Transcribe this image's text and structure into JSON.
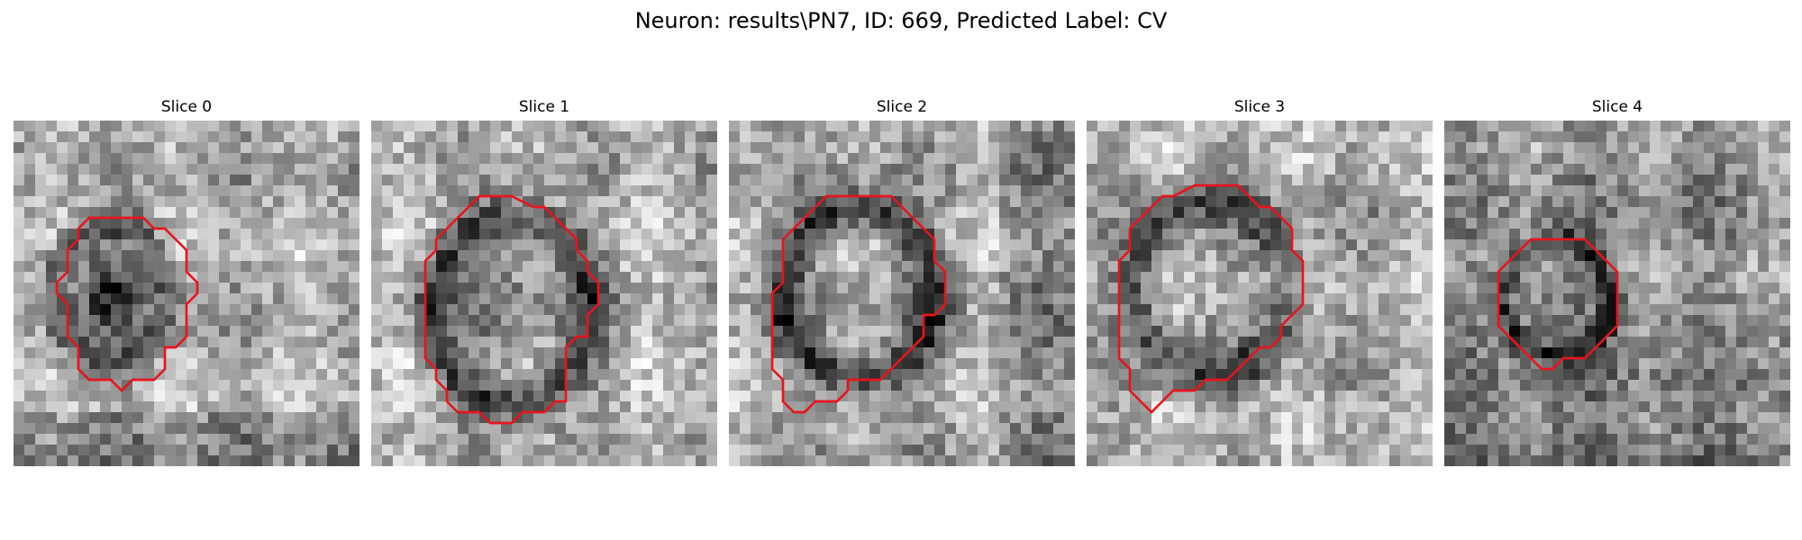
{
  "figure": {
    "title": "Neuron: results\\PN7, ID: 669, Predicted Label: CV",
    "contour_color": "#e8141c",
    "colormap": "grayscale"
  },
  "panels": [
    {
      "title": "Slice 0",
      "contour": [
        [
          10,
          9
        ],
        [
          12,
          9
        ],
        [
          13,
          10
        ],
        [
          14,
          10
        ],
        [
          15,
          11
        ],
        [
          16,
          12
        ],
        [
          16,
          14
        ],
        [
          17,
          15
        ],
        [
          17,
          16
        ],
        [
          16,
          17
        ],
        [
          16,
          20
        ],
        [
          15,
          21
        ],
        [
          14,
          21
        ],
        [
          14,
          23
        ],
        [
          13,
          24
        ],
        [
          11,
          24
        ],
        [
          10,
          25
        ],
        [
          9,
          24
        ],
        [
          7,
          24
        ],
        [
          6,
          23
        ],
        [
          6,
          21
        ],
        [
          5,
          20
        ],
        [
          5,
          17
        ],
        [
          4,
          16
        ],
        [
          4,
          15
        ],
        [
          5,
          14
        ],
        [
          5,
          12
        ],
        [
          6,
          11
        ],
        [
          6,
          10
        ],
        [
          7,
          9
        ]
      ]
    },
    {
      "title": "Slice 1",
      "contour": [
        [
          10,
          7
        ],
        [
          13,
          7
        ],
        [
          15,
          8
        ],
        [
          16,
          8
        ],
        [
          17,
          9
        ],
        [
          18,
          10
        ],
        [
          19,
          11
        ],
        [
          19,
          12
        ],
        [
          20,
          13
        ],
        [
          20,
          14
        ],
        [
          21,
          15
        ],
        [
          21,
          17
        ],
        [
          20,
          18
        ],
        [
          20,
          20
        ],
        [
          19,
          20
        ],
        [
          18,
          21
        ],
        [
          18,
          26
        ],
        [
          17,
          26
        ],
        [
          16,
          27
        ],
        [
          14,
          27
        ],
        [
          13,
          28
        ],
        [
          11,
          28
        ],
        [
          10,
          27
        ],
        [
          8,
          27
        ],
        [
          7,
          26
        ],
        [
          7,
          25
        ],
        [
          6,
          24
        ],
        [
          6,
          23
        ],
        [
          5,
          22
        ],
        [
          5,
          17
        ],
        [
          5,
          13
        ],
        [
          6,
          12
        ],
        [
          6,
          11
        ],
        [
          7,
          10
        ],
        [
          8,
          9
        ],
        [
          9,
          8
        ]
      ]
    },
    {
      "title": "Slice 2",
      "contour": [
        [
          10,
          7
        ],
        [
          15,
          7
        ],
        [
          16,
          8
        ],
        [
          17,
          9
        ],
        [
          18,
          10
        ],
        [
          19,
          11
        ],
        [
          19,
          13
        ],
        [
          20,
          14
        ],
        [
          20,
          17
        ],
        [
          19,
          18
        ],
        [
          18,
          18
        ],
        [
          18,
          20
        ],
        [
          17,
          21
        ],
        [
          16,
          22
        ],
        [
          15,
          23
        ],
        [
          14,
          24
        ],
        [
          12,
          24
        ],
        [
          11,
          24
        ],
        [
          11,
          25
        ],
        [
          10,
          26
        ],
        [
          8,
          26
        ],
        [
          7,
          27
        ],
        [
          6,
          27
        ],
        [
          5,
          26
        ],
        [
          5,
          24
        ],
        [
          4,
          23
        ],
        [
          4,
          16
        ],
        [
          5,
          15
        ],
        [
          5,
          13
        ],
        [
          5,
          11
        ],
        [
          6,
          10
        ],
        [
          7,
          9
        ],
        [
          8,
          8
        ],
        [
          9,
          7
        ]
      ]
    },
    {
      "title": "Slice 3",
      "contour": [
        [
          10,
          6
        ],
        [
          14,
          6
        ],
        [
          15,
          7
        ],
        [
          16,
          8
        ],
        [
          17,
          8
        ],
        [
          18,
          9
        ],
        [
          19,
          10
        ],
        [
          19,
          12
        ],
        [
          20,
          13
        ],
        [
          20,
          17
        ],
        [
          19,
          18
        ],
        [
          18,
          19
        ],
        [
          18,
          20
        ],
        [
          17,
          21
        ],
        [
          16,
          21
        ],
        [
          15,
          22
        ],
        [
          14,
          23
        ],
        [
          13,
          24
        ],
        [
          11,
          24
        ],
        [
          10,
          25
        ],
        [
          8,
          25
        ],
        [
          7,
          26
        ],
        [
          6,
          27
        ],
        [
          5,
          26
        ],
        [
          4,
          25
        ],
        [
          4,
          23
        ],
        [
          3,
          22
        ],
        [
          3,
          18
        ],
        [
          3,
          13
        ],
        [
          4,
          12
        ],
        [
          4,
          10
        ],
        [
          5,
          9
        ],
        [
          6,
          8
        ],
        [
          7,
          7
        ],
        [
          8,
          7
        ]
      ]
    },
    {
      "title": "Slice 4",
      "contour": [
        [
          10,
          11
        ],
        [
          13,
          11
        ],
        [
          14,
          12
        ],
        [
          15,
          13
        ],
        [
          16,
          14
        ],
        [
          16,
          17
        ],
        [
          16,
          19
        ],
        [
          15,
          20
        ],
        [
          14,
          21
        ],
        [
          13,
          22
        ],
        [
          11,
          22
        ],
        [
          10,
          23
        ],
        [
          9,
          23
        ],
        [
          8,
          22
        ],
        [
          7,
          21
        ],
        [
          6,
          20
        ],
        [
          5,
          19
        ],
        [
          5,
          16
        ],
        [
          5,
          14
        ],
        [
          6,
          13
        ],
        [
          7,
          12
        ],
        [
          8,
          11
        ]
      ]
    }
  ]
}
